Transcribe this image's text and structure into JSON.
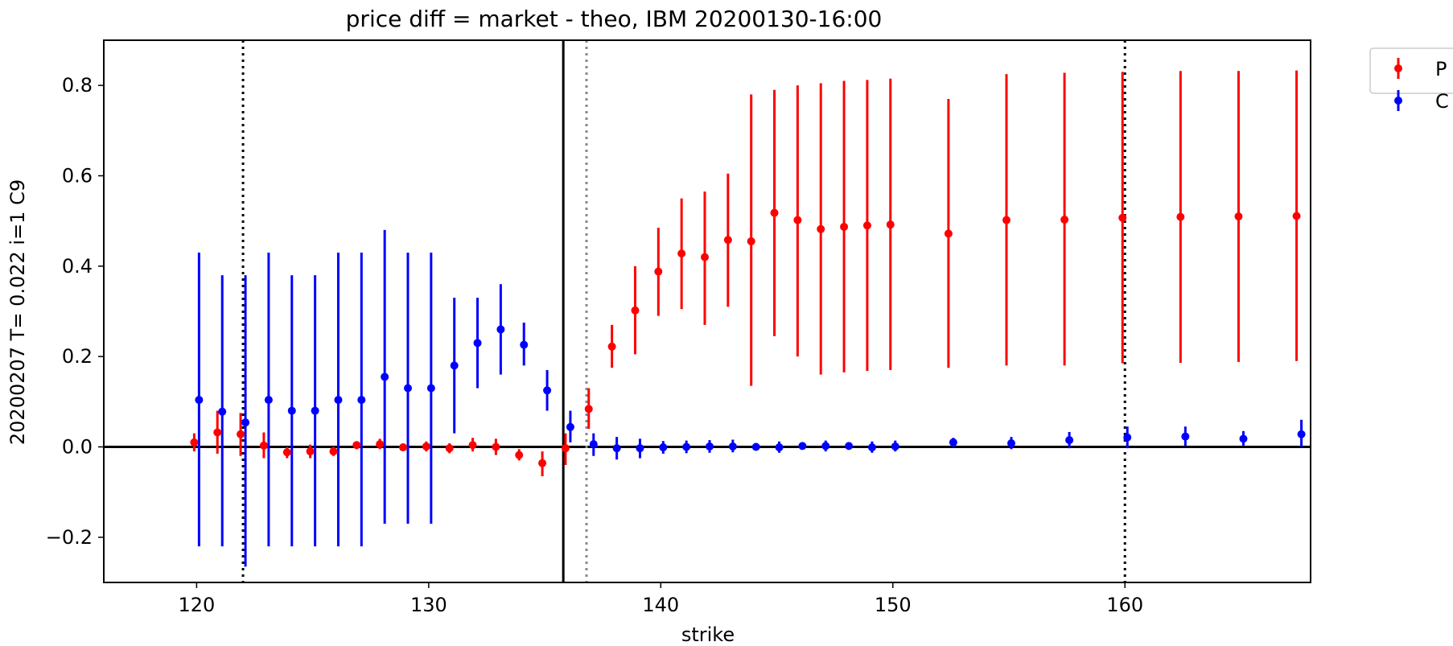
{
  "chart_data": {
    "type": "scatter",
    "title": "price diff = market - theo,  IBM 20200130-16:00",
    "xlabel": "strike",
    "ylabel": "20200207 T= 0.022 i=1 C9",
    "xlim": [
      116,
      168
    ],
    "ylim": [
      -0.3,
      0.9
    ],
    "xticks": [
      120,
      130,
      140,
      150,
      160
    ],
    "yticks": [
      -0.2,
      0.0,
      0.2,
      0.4,
      0.6,
      0.8
    ],
    "xtick_labels": [
      "120",
      "130",
      "140",
      "150",
      "160"
    ],
    "ytick_labels": [
      "−0.2",
      "0.0",
      "0.2",
      "0.4",
      "0.6",
      "0.8"
    ],
    "grid": false,
    "legend_position": "outside-top-right",
    "reference_lines": [
      {
        "orientation": "horizontal",
        "value": 0.0,
        "style": "solid",
        "color": "#000000"
      },
      {
        "orientation": "vertical",
        "value": 135.8,
        "style": "solid",
        "color": "#000000"
      },
      {
        "orientation": "vertical",
        "value": 136.8,
        "style": "dotted",
        "color": "#888888"
      },
      {
        "orientation": "vertical",
        "value": 122.0,
        "style": "dotted",
        "color": "#000000"
      },
      {
        "orientation": "vertical",
        "value": 160.0,
        "style": "dotted",
        "color": "#000000"
      }
    ],
    "series": [
      {
        "name": "P",
        "color": "#ff0000",
        "points": [
          {
            "x": 120,
            "y": 0.01,
            "lo": -0.01,
            "hi": 0.03
          },
          {
            "x": 121,
            "y": 0.032,
            "lo": -0.015,
            "hi": 0.08
          },
          {
            "x": 122,
            "y": 0.028,
            "lo": -0.02,
            "hi": 0.075
          },
          {
            "x": 123,
            "y": 0.003,
            "lo": -0.025,
            "hi": 0.032
          },
          {
            "x": 124,
            "y": -0.012,
            "lo": -0.025,
            "hi": 0.0
          },
          {
            "x": 125,
            "y": -0.01,
            "lo": -0.025,
            "hi": 0.005
          },
          {
            "x": 126,
            "y": -0.01,
            "lo": -0.02,
            "hi": 0.0
          },
          {
            "x": 127,
            "y": 0.004,
            "lo": -0.005,
            "hi": 0.012
          },
          {
            "x": 128,
            "y": 0.006,
            "lo": -0.005,
            "hi": 0.018
          },
          {
            "x": 129,
            "y": -0.001,
            "lo": -0.008,
            "hi": 0.005
          },
          {
            "x": 130,
            "y": 0.001,
            "lo": -0.01,
            "hi": 0.012
          },
          {
            "x": 131,
            "y": -0.003,
            "lo": -0.014,
            "hi": 0.008
          },
          {
            "x": 132,
            "y": 0.004,
            "lo": -0.01,
            "hi": 0.02
          },
          {
            "x": 133,
            "y": 0.0,
            "lo": -0.018,
            "hi": 0.018
          },
          {
            "x": 134,
            "y": -0.018,
            "lo": -0.03,
            "hi": -0.005
          },
          {
            "x": 135,
            "y": -0.036,
            "lo": -0.065,
            "hi": -0.01
          },
          {
            "x": 136,
            "y": -0.003,
            "lo": -0.04,
            "hi": 0.03
          },
          {
            "x": 137,
            "y": 0.084,
            "lo": 0.04,
            "hi": 0.13
          },
          {
            "x": 138,
            "y": 0.222,
            "lo": 0.175,
            "hi": 0.27
          },
          {
            "x": 139,
            "y": 0.302,
            "lo": 0.205,
            "hi": 0.4
          },
          {
            "x": 140,
            "y": 0.388,
            "lo": 0.29,
            "hi": 0.485
          },
          {
            "x": 141,
            "y": 0.428,
            "lo": 0.305,
            "hi": 0.55
          },
          {
            "x": 142,
            "y": 0.42,
            "lo": 0.27,
            "hi": 0.565
          },
          {
            "x": 143,
            "y": 0.458,
            "lo": 0.31,
            "hi": 0.605
          },
          {
            "x": 144,
            "y": 0.455,
            "lo": 0.135,
            "hi": 0.78
          },
          {
            "x": 145,
            "y": 0.518,
            "lo": 0.245,
            "hi": 0.79
          },
          {
            "x": 146,
            "y": 0.502,
            "lo": 0.2,
            "hi": 0.8
          },
          {
            "x": 147,
            "y": 0.482,
            "lo": 0.16,
            "hi": 0.805
          },
          {
            "x": 148,
            "y": 0.487,
            "lo": 0.165,
            "hi": 0.81
          },
          {
            "x": 149,
            "y": 0.49,
            "lo": 0.168,
            "hi": 0.812
          },
          {
            "x": 150,
            "y": 0.492,
            "lo": 0.17,
            "hi": 0.815
          },
          {
            "x": 152.5,
            "y": 0.472,
            "lo": 0.175,
            "hi": 0.77
          },
          {
            "x": 155,
            "y": 0.502,
            "lo": 0.18,
            "hi": 0.825
          },
          {
            "x": 157.5,
            "y": 0.503,
            "lo": 0.18,
            "hi": 0.828
          },
          {
            "x": 160,
            "y": 0.507,
            "lo": 0.185,
            "hi": 0.83
          },
          {
            "x": 162.5,
            "y": 0.509,
            "lo": 0.186,
            "hi": 0.832
          },
          {
            "x": 165,
            "y": 0.51,
            "lo": 0.188,
            "hi": 0.832
          },
          {
            "x": 167.5,
            "y": 0.511,
            "lo": 0.19,
            "hi": 0.833
          }
        ]
      },
      {
        "name": "C",
        "color": "#0000ff",
        "points": [
          {
            "x": 120,
            "y": 0.104,
            "lo": -0.22,
            "hi": 0.43
          },
          {
            "x": 121,
            "y": 0.078,
            "lo": -0.22,
            "hi": 0.38
          },
          {
            "x": 122,
            "y": 0.054,
            "lo": -0.265,
            "hi": 0.38
          },
          {
            "x": 123,
            "y": 0.104,
            "lo": -0.22,
            "hi": 0.43
          },
          {
            "x": 124,
            "y": 0.08,
            "lo": -0.22,
            "hi": 0.38
          },
          {
            "x": 125,
            "y": 0.08,
            "lo": -0.22,
            "hi": 0.38
          },
          {
            "x": 126,
            "y": 0.104,
            "lo": -0.22,
            "hi": 0.43
          },
          {
            "x": 127,
            "y": 0.104,
            "lo": -0.22,
            "hi": 0.43
          },
          {
            "x": 128,
            "y": 0.155,
            "lo": -0.17,
            "hi": 0.48
          },
          {
            "x": 129,
            "y": 0.13,
            "lo": -0.17,
            "hi": 0.43
          },
          {
            "x": 130,
            "y": 0.13,
            "lo": -0.17,
            "hi": 0.43
          },
          {
            "x": 131,
            "y": 0.18,
            "lo": 0.03,
            "hi": 0.33
          },
          {
            "x": 132,
            "y": 0.23,
            "lo": 0.13,
            "hi": 0.33
          },
          {
            "x": 133,
            "y": 0.26,
            "lo": 0.16,
            "hi": 0.36
          },
          {
            "x": 134,
            "y": 0.226,
            "lo": 0.18,
            "hi": 0.275
          },
          {
            "x": 135,
            "y": 0.125,
            "lo": 0.08,
            "hi": 0.17
          },
          {
            "x": 136,
            "y": 0.044,
            "lo": 0.01,
            "hi": 0.08
          },
          {
            "x": 137,
            "y": 0.006,
            "lo": -0.02,
            "hi": 0.03
          },
          {
            "x": 138,
            "y": -0.003,
            "lo": -0.028,
            "hi": 0.022
          },
          {
            "x": 139,
            "y": -0.003,
            "lo": -0.025,
            "hi": 0.018
          },
          {
            "x": 140,
            "y": -0.001,
            "lo": -0.015,
            "hi": 0.013
          },
          {
            "x": 141,
            "y": 0.0,
            "lo": -0.014,
            "hi": 0.014
          },
          {
            "x": 142,
            "y": 0.001,
            "lo": -0.013,
            "hi": 0.015
          },
          {
            "x": 143,
            "y": 0.001,
            "lo": -0.012,
            "hi": 0.016
          },
          {
            "x": 144,
            "y": 0.0,
            "lo": -0.005,
            "hi": 0.005
          },
          {
            "x": 145,
            "y": -0.001,
            "lo": -0.013,
            "hi": 0.012
          },
          {
            "x": 146,
            "y": 0.002,
            "lo": -0.005,
            "hi": 0.009
          },
          {
            "x": 147,
            "y": 0.002,
            "lo": -0.01,
            "hi": 0.014
          },
          {
            "x": 148,
            "y": 0.002,
            "lo": -0.004,
            "hi": 0.008
          },
          {
            "x": 149,
            "y": -0.001,
            "lo": -0.013,
            "hi": 0.012
          },
          {
            "x": 150,
            "y": 0.001,
            "lo": -0.01,
            "hi": 0.014
          },
          {
            "x": 152.5,
            "y": 0.01,
            "lo": 0.0,
            "hi": 0.02
          },
          {
            "x": 155,
            "y": 0.008,
            "lo": -0.005,
            "hi": 0.022
          },
          {
            "x": 157.5,
            "y": 0.015,
            "lo": -0.003,
            "hi": 0.033
          },
          {
            "x": 160,
            "y": 0.021,
            "lo": -0.003,
            "hi": 0.045
          },
          {
            "x": 162.5,
            "y": 0.023,
            "lo": 0.002,
            "hi": 0.045
          },
          {
            "x": 165,
            "y": 0.018,
            "lo": 0.003,
            "hi": 0.035
          },
          {
            "x": 167.5,
            "y": 0.028,
            "lo": 0.0,
            "hi": 0.06
          }
        ]
      }
    ]
  }
}
